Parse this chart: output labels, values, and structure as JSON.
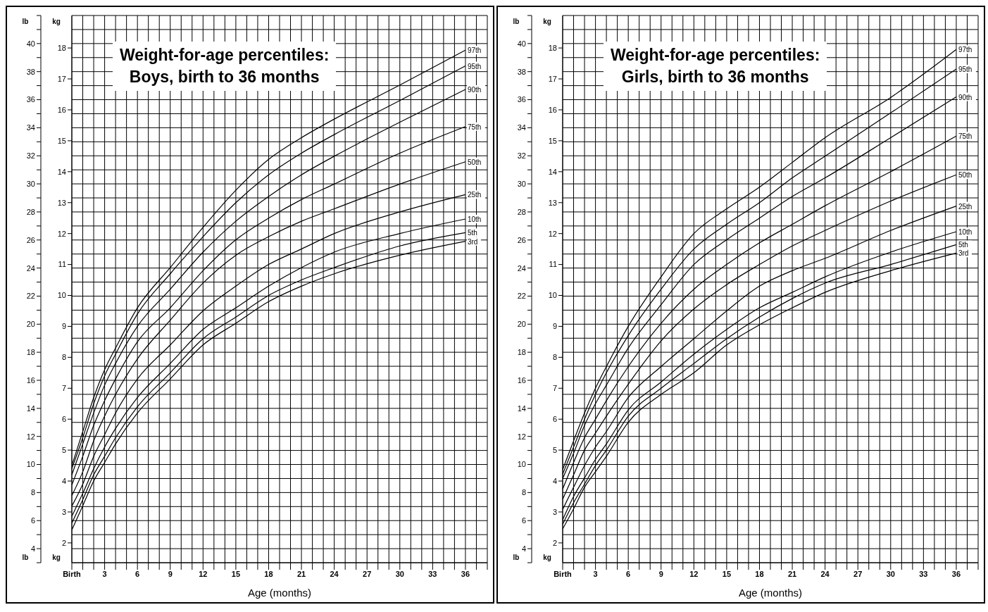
{
  "chart_data": [
    {
      "type": "line",
      "title": "Weight-for-age percentiles:\nBoys, birth to 36 months",
      "xlabel": "Age (months)",
      "ylabel": "kg",
      "y2label": "lb",
      "legend": false,
      "grid": true,
      "marker": "none",
      "line_style": "solid",
      "x": [
        0,
        1,
        2,
        3,
        4,
        6,
        9,
        12,
        15,
        18,
        21,
        24,
        30,
        36
      ],
      "xlim": [
        0,
        38
      ],
      "xticks": [
        {
          "value": 0,
          "label": "Birth"
        },
        {
          "value": 1,
          "label": null
        },
        {
          "value": 2,
          "label": null
        },
        3,
        {
          "value": 4,
          "label": null
        },
        {
          "value": 5,
          "label": null
        },
        6,
        {
          "value": 7,
          "label": null
        },
        {
          "value": 8,
          "label": null
        },
        9,
        {
          "value": 10,
          "label": null
        },
        {
          "value": 11,
          "label": null
        },
        12,
        {
          "value": 13,
          "label": null
        },
        {
          "value": 14,
          "label": null
        },
        15,
        {
          "value": 16,
          "label": null
        },
        {
          "value": 17,
          "label": null
        },
        18,
        {
          "value": 19,
          "label": null
        },
        {
          "value": 20,
          "label": null
        },
        21,
        {
          "value": 22,
          "label": null
        },
        {
          "value": 23,
          "label": null
        },
        24,
        {
          "value": 25,
          "label": null
        },
        {
          "value": 26,
          "label": null
        },
        27,
        {
          "value": 28,
          "label": null
        },
        {
          "value": 29,
          "label": null
        },
        30,
        {
          "value": 31,
          "label": null
        },
        {
          "value": 32,
          "label": null
        },
        33,
        {
          "value": 34,
          "label": null
        },
        {
          "value": 35,
          "label": null
        },
        36,
        {
          "value": 37,
          "label": null
        },
        {
          "value": 38,
          "label": null
        }
      ],
      "ylim": [
        1.36,
        19.05
      ],
      "yticks": [
        2,
        3,
        4,
        5,
        6,
        7,
        8,
        9,
        10,
        11,
        12,
        13,
        14,
        15,
        16,
        17,
        18
      ],
      "y2lim": [
        3,
        42
      ],
      "y2ticks": [
        {
          "value": 3,
          "label": null
        },
        4,
        {
          "value": 5,
          "label": null
        },
        6,
        {
          "value": 7,
          "label": null
        },
        8,
        {
          "value": 9,
          "label": null
        },
        10,
        {
          "value": 11,
          "label": null
        },
        12,
        {
          "value": 13,
          "label": null
        },
        14,
        {
          "value": 15,
          "label": null
        },
        16,
        {
          "value": 17,
          "label": null
        },
        18,
        {
          "value": 19,
          "label": null
        },
        20,
        {
          "value": 21,
          "label": null
        },
        22,
        {
          "value": 23,
          "label": null
        },
        24,
        {
          "value": 25,
          "label": null
        },
        26,
        {
          "value": 27,
          "label": null
        },
        28,
        {
          "value": 29,
          "label": null
        },
        30,
        {
          "value": 31,
          "label": null
        },
        32,
        {
          "value": 33,
          "label": null
        },
        34,
        {
          "value": 35,
          "label": null
        },
        36,
        {
          "value": 37,
          "label": null
        },
        38,
        {
          "value": 39,
          "label": null
        },
        40,
        {
          "value": 41,
          "label": null
        },
        {
          "value": 42,
          "label": null
        }
      ],
      "series": [
        {
          "name": "97th",
          "color": "#000000",
          "values": [
            4.5,
            5.6,
            6.7,
            7.6,
            8.3,
            9.6,
            10.9,
            12.2,
            13.4,
            14.4,
            15.1,
            15.7,
            16.8,
            17.93
          ]
        },
        {
          "name": "95th",
          "color": "#000000",
          "values": [
            4.4,
            5.4,
            6.5,
            7.4,
            8.1,
            9.4,
            10.7,
            11.9,
            13.0,
            13.9,
            14.6,
            15.2,
            16.3,
            17.42
          ]
        },
        {
          "name": "90th",
          "color": "#000000",
          "values": [
            4.2,
            5.2,
            6.2,
            7.1,
            7.8,
            9.0,
            10.2,
            11.4,
            12.4,
            13.2,
            13.9,
            14.5,
            15.6,
            16.66
          ]
        },
        {
          "name": "75th",
          "color": "#000000",
          "values": [
            3.87,
            4.8,
            5.8,
            6.6,
            7.3,
            8.5,
            9.6,
            10.8,
            11.8,
            12.5,
            13.1,
            13.6,
            14.6,
            15.46
          ]
        },
        {
          "name": "50th",
          "color": "#000000",
          "values": [
            3.53,
            4.3,
            5.3,
            6.1,
            6.8,
            7.95,
            9.2,
            10.4,
            11.3,
            11.9,
            12.4,
            12.8,
            13.6,
            14.32
          ]
        },
        {
          "name": "25th",
          "color": "#000000",
          "values": [
            3.19,
            3.9,
            4.8,
            5.5,
            6.2,
            7.3,
            8.4,
            9.5,
            10.3,
            11.0,
            11.5,
            12.0,
            12.7,
            13.26
          ]
        },
        {
          "name": "10th",
          "color": "#000000",
          "values": [
            2.86,
            3.6,
            4.4,
            5.1,
            5.7,
            6.7,
            7.8,
            8.9,
            9.6,
            10.3,
            10.9,
            11.4,
            12.0,
            12.47
          ]
        },
        {
          "name": "5th",
          "color": "#000000",
          "values": [
            2.64,
            3.4,
            4.2,
            4.8,
            5.4,
            6.4,
            7.5,
            8.6,
            9.3,
            10.0,
            10.5,
            10.9,
            11.6,
            12.03
          ]
        },
        {
          "name": "3rd",
          "color": "#000000",
          "values": [
            2.42,
            3.2,
            4.0,
            4.6,
            5.2,
            6.2,
            7.3,
            8.4,
            9.1,
            9.8,
            10.3,
            10.7,
            11.3,
            11.75
          ]
        }
      ]
    },
    {
      "type": "line",
      "title": "Weight-for-age percentiles:\nGirls, birth to 36 months",
      "xlabel": "Age (months)",
      "ylabel": "kg",
      "y2label": "lb",
      "legend": false,
      "grid": true,
      "marker": "none",
      "line_style": "solid",
      "x": [
        0,
        1,
        2,
        3,
        4,
        6,
        9,
        12,
        15,
        18,
        21,
        24,
        30,
        36
      ],
      "xlim": [
        0,
        38
      ],
      "xticks": [
        {
          "value": 0,
          "label": "Birth"
        },
        {
          "value": 1,
          "label": null
        },
        {
          "value": 2,
          "label": null
        },
        3,
        {
          "value": 4,
          "label": null
        },
        {
          "value": 5,
          "label": null
        },
        6,
        {
          "value": 7,
          "label": null
        },
        {
          "value": 8,
          "label": null
        },
        9,
        {
          "value": 10,
          "label": null
        },
        {
          "value": 11,
          "label": null
        },
        12,
        {
          "value": 13,
          "label": null
        },
        {
          "value": 14,
          "label": null
        },
        15,
        {
          "value": 16,
          "label": null
        },
        {
          "value": 17,
          "label": null
        },
        18,
        {
          "value": 19,
          "label": null
        },
        {
          "value": 20,
          "label": null
        },
        21,
        {
          "value": 22,
          "label": null
        },
        {
          "value": 23,
          "label": null
        },
        24,
        {
          "value": 25,
          "label": null
        },
        {
          "value": 26,
          "label": null
        },
        27,
        {
          "value": 28,
          "label": null
        },
        {
          "value": 29,
          "label": null
        },
        30,
        {
          "value": 31,
          "label": null
        },
        {
          "value": 32,
          "label": null
        },
        33,
        {
          "value": 34,
          "label": null
        },
        {
          "value": 35,
          "label": null
        },
        36,
        {
          "value": 37,
          "label": null
        },
        {
          "value": 38,
          "label": null
        }
      ],
      "ylim": [
        1.36,
        19.05
      ],
      "yticks": [
        2,
        3,
        4,
        5,
        6,
        7,
        8,
        9,
        10,
        11,
        12,
        13,
        14,
        15,
        16,
        17,
        18
      ],
      "y2lim": [
        3,
        42
      ],
      "y2ticks": [
        {
          "value": 3,
          "label": null
        },
        4,
        {
          "value": 5,
          "label": null
        },
        6,
        {
          "value": 7,
          "label": null
        },
        8,
        {
          "value": 9,
          "label": null
        },
        10,
        {
          "value": 11,
          "label": null
        },
        12,
        {
          "value": 13,
          "label": null
        },
        14,
        {
          "value": 15,
          "label": null
        },
        16,
        {
          "value": 17,
          "label": null
        },
        18,
        {
          "value": 19,
          "label": null
        },
        20,
        {
          "value": 21,
          "label": null
        },
        22,
        {
          "value": 23,
          "label": null
        },
        24,
        {
          "value": 25,
          "label": null
        },
        26,
        {
          "value": 27,
          "label": null
        },
        28,
        {
          "value": 29,
          "label": null
        },
        30,
        {
          "value": 31,
          "label": null
        },
        32,
        {
          "value": 33,
          "label": null
        },
        34,
        {
          "value": 35,
          "label": null
        },
        36,
        {
          "value": 37,
          "label": null
        },
        38,
        {
          "value": 39,
          "label": null
        },
        40,
        {
          "value": 41,
          "label": null
        },
        {
          "value": 42,
          "label": null
        }
      ],
      "series": [
        {
          "name": "97th",
          "color": "#000000",
          "values": [
            4.37,
            5.3,
            6.2,
            7.0,
            7.7,
            9.0,
            10.6,
            12.0,
            12.8,
            13.5,
            14.3,
            15.1,
            16.4,
            17.95
          ]
        },
        {
          "name": "95th",
          "color": "#000000",
          "values": [
            4.22,
            5.1,
            6.0,
            6.8,
            7.5,
            8.7,
            10.2,
            11.5,
            12.3,
            13.0,
            13.8,
            14.5,
            15.9,
            17.32
          ]
        },
        {
          "name": "90th",
          "color": "#000000",
          "values": [
            4.08,
            4.9,
            5.8,
            6.5,
            7.1,
            8.3,
            9.7,
            11.0,
            11.8,
            12.5,
            13.2,
            13.8,
            15.1,
            16.42
          ]
        },
        {
          "name": "75th",
          "color": "#000000",
          "values": [
            3.74,
            4.6,
            5.4,
            6.0,
            6.6,
            7.7,
            9.1,
            10.2,
            11.0,
            11.7,
            12.3,
            12.9,
            14.0,
            15.15
          ]
        },
        {
          "name": "50th",
          "color": "#000000",
          "values": [
            3.41,
            4.2,
            5.0,
            5.55,
            6.1,
            7.13,
            8.53,
            9.56,
            10.35,
            11.0,
            11.6,
            12.1,
            13.05,
            13.9
          ]
        },
        {
          "name": "25th",
          "color": "#000000",
          "values": [
            3.08,
            3.8,
            4.5,
            5.1,
            5.6,
            6.7,
            7.7,
            8.6,
            9.5,
            10.3,
            10.8,
            11.2,
            12.1,
            12.89
          ]
        },
        {
          "name": "10th",
          "color": "#000000",
          "values": [
            2.75,
            3.5,
            4.1,
            4.7,
            5.2,
            6.3,
            7.2,
            8.1,
            8.9,
            9.6,
            10.1,
            10.6,
            11.4,
            12.06
          ]
        },
        {
          "name": "5th",
          "color": "#000000",
          "values": [
            2.6,
            3.3,
            3.9,
            4.5,
            5.0,
            6.1,
            7.0,
            7.8,
            8.6,
            9.3,
            9.9,
            10.4,
            11.0,
            11.64
          ]
        },
        {
          "name": "3rd",
          "color": "#000000",
          "values": [
            2.45,
            3.1,
            3.8,
            4.3,
            4.8,
            5.9,
            6.8,
            7.5,
            8.4,
            9.05,
            9.6,
            10.1,
            10.8,
            11.37
          ]
        }
      ]
    }
  ]
}
